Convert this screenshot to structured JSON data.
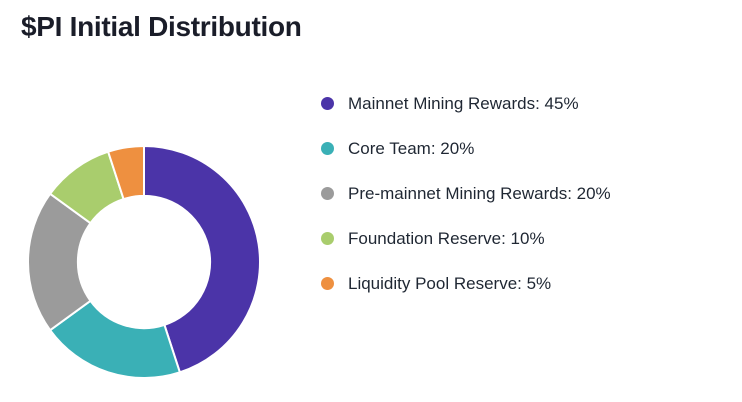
{
  "page": {
    "title": "$PI Initial Distribution",
    "background": "#ffffff"
  },
  "chart_data": {
    "type": "pie",
    "subtype": "donut",
    "title": "$PI Initial Distribution",
    "categories": [
      "Mainnet Mining Rewards",
      "Core Team",
      "Pre-mainnet Mining Rewards",
      "Foundation Reserve",
      "Liquidity Pool Reserve"
    ],
    "values": [
      45,
      20,
      20,
      10,
      5
    ],
    "unit": "%",
    "colors": [
      "#4b34a8",
      "#3ab0b6",
      "#9b9b9b",
      "#a9cd6d",
      "#ee9040"
    ],
    "legend_labels": [
      "Mainnet Mining Rewards: 45%",
      "Core Team: 20%",
      "Pre-mainnet Mining Rewards: 20%",
      "Foundation Reserve: 10%",
      "Liquidity Pool Reserve: 5%"
    ],
    "legend_position": "right",
    "start_angle_deg": 0,
    "direction": "clockwise",
    "inner_radius_ratio": 0.57,
    "segment_gap_color": "#ffffff"
  }
}
